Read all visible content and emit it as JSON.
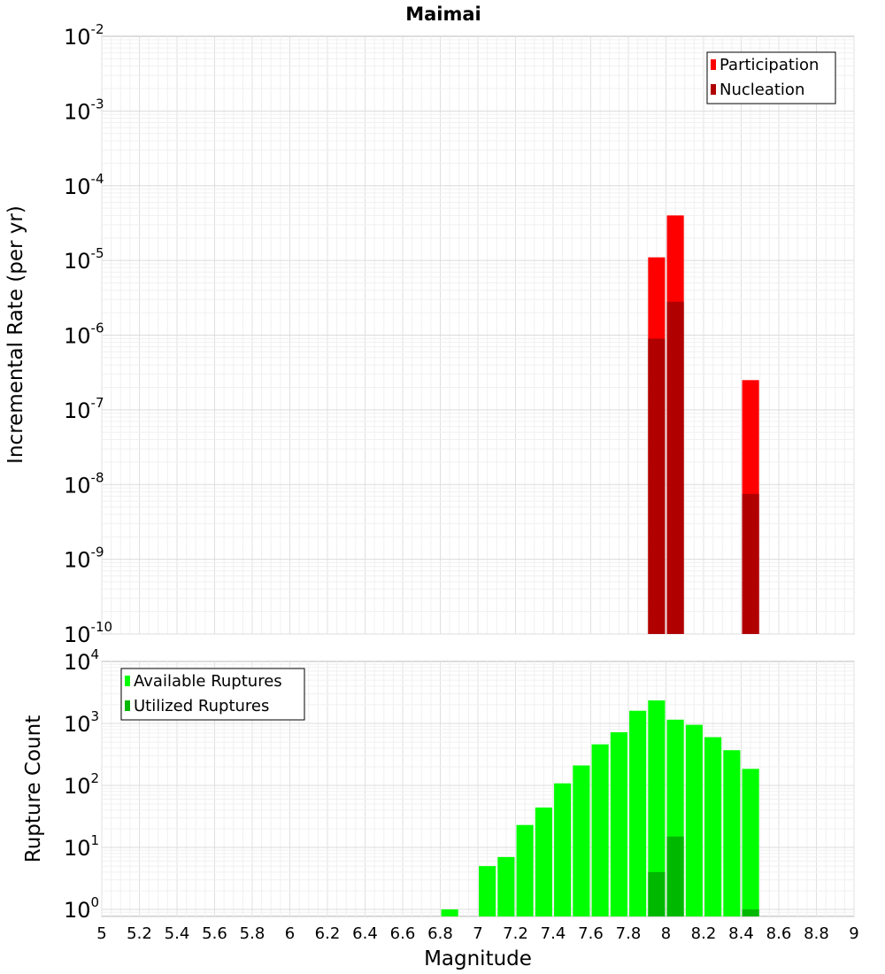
{
  "chart_data": [
    {
      "type": "bar",
      "title": "Maimai",
      "xlabel": "",
      "ylabel": "Incremental Rate (per yr)",
      "yscale": "log",
      "xlim": [
        5,
        9
      ],
      "ylim": [
        1e-10,
        0.01
      ],
      "ytick_exponents": [
        "-10",
        "-9",
        "-8",
        "-7",
        "-6",
        "-5",
        "-4",
        "-3",
        "-2"
      ],
      "ytick_base": "10",
      "grid": true,
      "legend_position": "top-right",
      "bar_width": 0.09,
      "series": [
        {
          "name": "Participation",
          "color": "#ff0000",
          "points": [
            {
              "x": 7.95,
              "y": 1.1e-05
            },
            {
              "x": 8.05,
              "y": 4e-05
            },
            {
              "x": 8.45,
              "y": 2.5e-07
            }
          ]
        },
        {
          "name": "Nucleation",
          "color": "#b00000",
          "points": [
            {
              "x": 7.95,
              "y": 9e-07
            },
            {
              "x": 8.05,
              "y": 2.8e-06
            },
            {
              "x": 8.45,
              "y": 7.5e-09
            }
          ]
        }
      ]
    },
    {
      "type": "bar",
      "title": "",
      "xlabel": "Magnitude",
      "ylabel": "Rupture Count",
      "yscale": "log",
      "xlim": [
        5,
        9
      ],
      "ylim": [
        0.77,
        10000
      ],
      "ytick_exponents": [
        "0",
        "1",
        "2",
        "3",
        "4"
      ],
      "ytick_base": "10",
      "xticks": [
        "5",
        "5.2",
        "5.4",
        "5.6",
        "5.8",
        "6",
        "6.2",
        "6.4",
        "6.6",
        "6.8",
        "7",
        "7.2",
        "7.4",
        "7.6",
        "7.8",
        "8",
        "8.2",
        "8.4",
        "8.6",
        "8.8",
        "9"
      ],
      "grid": true,
      "legend_position": "top-left",
      "bar_width": 0.09,
      "series": [
        {
          "name": "Available Ruptures",
          "color": "#00ff00",
          "points": [
            {
              "x": 6.85,
              "y": 1
            },
            {
              "x": 7.05,
              "y": 5
            },
            {
              "x": 7.15,
              "y": 7
            },
            {
              "x": 7.25,
              "y": 23
            },
            {
              "x": 7.35,
              "y": 44
            },
            {
              "x": 7.45,
              "y": 108
            },
            {
              "x": 7.55,
              "y": 210
            },
            {
              "x": 7.65,
              "y": 460
            },
            {
              "x": 7.75,
              "y": 720
            },
            {
              "x": 7.85,
              "y": 1600
            },
            {
              "x": 7.95,
              "y": 2350
            },
            {
              "x": 8.05,
              "y": 1150
            },
            {
              "x": 8.15,
              "y": 950
            },
            {
              "x": 8.25,
              "y": 600
            },
            {
              "x": 8.35,
              "y": 370
            },
            {
              "x": 8.45,
              "y": 185
            }
          ]
        },
        {
          "name": "Utilized Ruptures",
          "color": "#00b800",
          "points": [
            {
              "x": 7.95,
              "y": 4
            },
            {
              "x": 8.05,
              "y": 15
            },
            {
              "x": 8.45,
              "y": 1
            }
          ]
        }
      ]
    }
  ]
}
